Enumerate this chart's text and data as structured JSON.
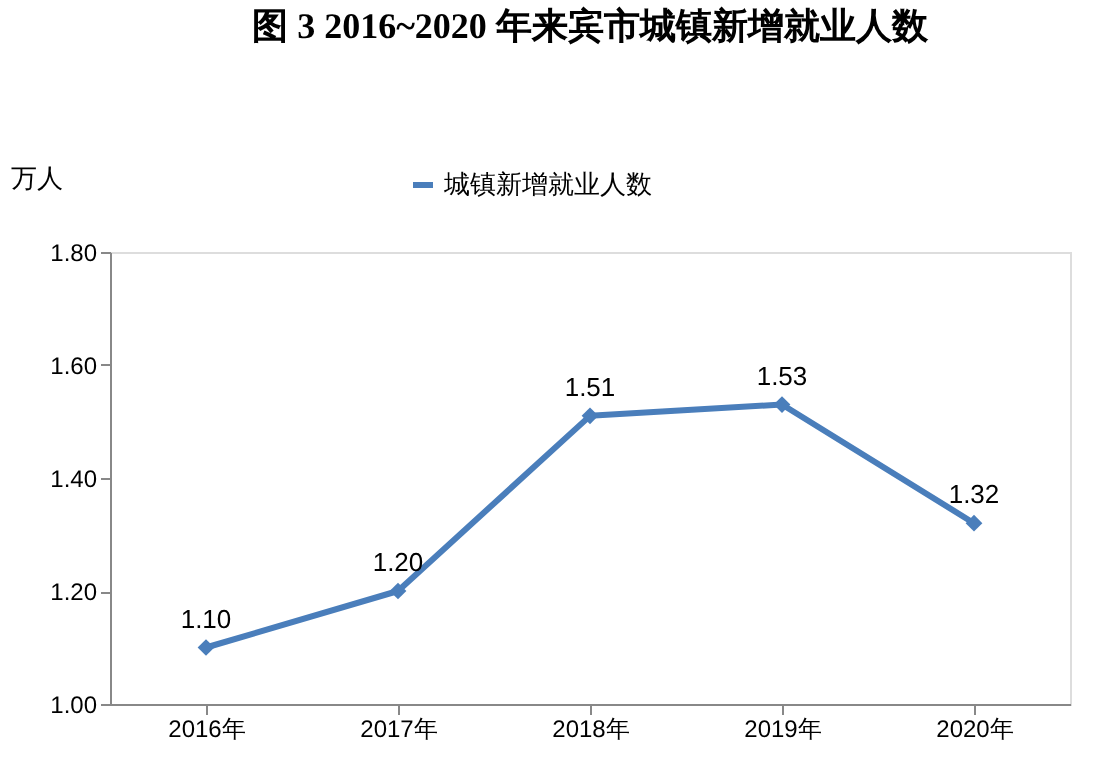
{
  "chart_data": {
    "type": "line",
    "title": "图 3   2016~2020 年来宾市城镇新增就业人数",
    "ylabel": "万人",
    "categories": [
      "2016年",
      "2017年",
      "2018年",
      "2019年",
      "2020年"
    ],
    "series": [
      {
        "name": "城镇新增就业人数",
        "color": "#4a7ebb",
        "values": [
          1.1,
          1.2,
          1.51,
          1.53,
          1.32
        ],
        "value_labels": [
          "1.10",
          "1.20",
          "1.51",
          "1.53",
          "1.32"
        ]
      }
    ],
    "ylim": [
      1.0,
      1.8
    ],
    "yticks": [
      {
        "value": 1.0,
        "label": "1.00"
      },
      {
        "value": 1.2,
        "label": "1.20"
      },
      {
        "value": 1.4,
        "label": "1.40"
      },
      {
        "value": 1.6,
        "label": "1.60"
      },
      {
        "value": 1.8,
        "label": "1.80"
      }
    ],
    "grid": false,
    "legend": "top",
    "marker": "diamond",
    "line_style": "solid"
  }
}
